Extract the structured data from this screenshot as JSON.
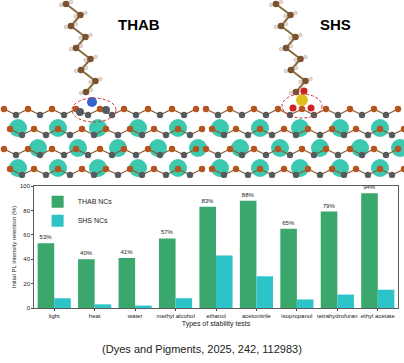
{
  "panels": [
    "THAB",
    "SHS"
  ],
  "caption": "(Dyes and Pigments, 2025, 242, 112983)",
  "chart_data": {
    "type": "bar",
    "categories": [
      "light",
      "heat",
      "water",
      "methyl alcohol",
      "ethanol",
      "acetonitrile",
      "isopropanol",
      "tetrahydrofuran",
      "ethyl acetate"
    ],
    "series": [
      {
        "name": "THAB NCs",
        "color": "#3aa76d",
        "values": [
          53,
          40,
          41,
          57,
          83,
          88,
          65,
          79,
          94
        ],
        "value_labels": [
          "53%",
          "40%",
          "41%",
          "57%",
          "83%",
          "88%",
          "65%",
          "79%",
          "94%"
        ],
        "data_labels": true
      },
      {
        "name": "SHS NCs",
        "color": "#2cc3c9",
        "values": [
          8,
          3,
          2,
          8,
          43,
          26,
          7,
          11,
          15
        ],
        "data_labels": false
      }
    ],
    "x_label": "Types of stability tests",
    "y_label": "Initial PL intensity retention (%)",
    "ylim": [
      0,
      100
    ],
    "yticks": [
      0,
      20,
      40,
      60,
      80,
      100
    ],
    "grid": false,
    "legend": "upper left"
  }
}
